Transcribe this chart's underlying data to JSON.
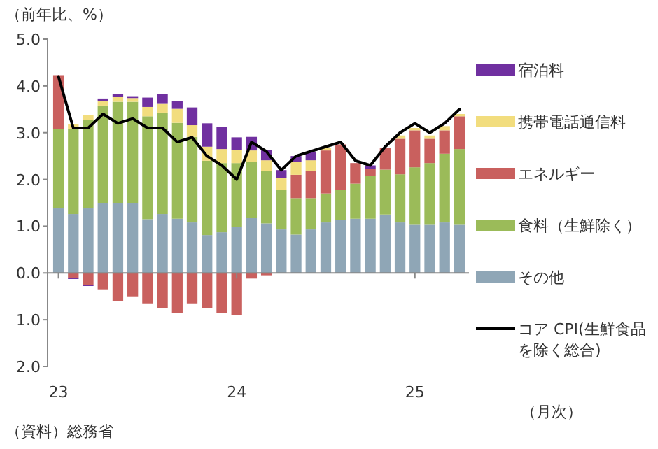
{
  "chart_data": {
    "type": "bar",
    "stacked": true,
    "ylabel": "（前年比、%）",
    "xlabel": "（月次）",
    "annotations": [
      "（資料）総務省"
    ],
    "categories": [
      "23",
      null,
      null,
      null,
      null,
      null,
      null,
      null,
      null,
      null,
      null,
      null,
      "24",
      null,
      null,
      null,
      null,
      null,
      null,
      null,
      null,
      null,
      null,
      null,
      "25",
      null,
      null,
      null
    ],
    "ylim": [
      -2,
      5
    ],
    "yticks": [
      {
        "value": -2,
        "label": "2.0"
      },
      {
        "value": -1,
        "label": "1.0"
      },
      {
        "value": 0,
        "label": "0.0"
      },
      {
        "value": 1,
        "label": "1.0"
      },
      {
        "value": 2,
        "label": "2.0"
      },
      {
        "value": 3,
        "label": "3.0"
      },
      {
        "value": 4,
        "label": "4.0"
      },
      {
        "value": 5,
        "label": "5.0"
      }
    ],
    "legend": "right",
    "series": [
      {
        "name": "その他",
        "color": "#8fa6b6",
        "values": [
          1.38,
          1.26,
          1.38,
          1.5,
          1.5,
          1.5,
          1.15,
          1.26,
          1.16,
          1.08,
          0.81,
          0.87,
          0.98,
          1.18,
          1.06,
          0.93,
          0.82,
          0.93,
          1.08,
          1.13,
          1.16,
          1.16,
          1.25,
          1.08,
          1.03,
          1.03,
          1.08,
          1.03
        ]
      },
      {
        "name": "食料（生鮮除く）",
        "color": "#9bbb59",
        "values": [
          1.7,
          1.82,
          1.9,
          2.08,
          2.16,
          2.16,
          2.2,
          2.17,
          2.05,
          1.83,
          1.59,
          1.48,
          1.37,
          1.2,
          1.12,
          0.85,
          0.78,
          0.67,
          0.62,
          0.65,
          0.75,
          0.92,
          0.96,
          1.03,
          1.23,
          1.32,
          1.47,
          1.62
        ]
      },
      {
        "name": "エネルギー",
        "color": "#c9605e",
        "values": [
          1.15,
          -0.1,
          -0.25,
          -0.35,
          -0.6,
          -0.5,
          -0.65,
          -0.75,
          -0.85,
          -0.65,
          -0.75,
          -0.85,
          -0.9,
          -0.12,
          -0.05,
          null,
          0.5,
          0.58,
          0.92,
          0.97,
          0.44,
          0.15,
          0.46,
          0.76,
          0.79,
          0.52,
          0.5,
          0.7
        ]
      },
      {
        "name": "携帯電話通信料",
        "color": "#f2dd7e",
        "values": [
          null,
          0.1,
          0.1,
          0.1,
          0.1,
          0.08,
          0.2,
          0.2,
          0.3,
          0.25,
          0.3,
          0.3,
          0.28,
          0.24,
          0.23,
          0.25,
          0.28,
          0.23,
          0.05,
          null,
          null,
          null,
          null,
          0.07,
          0.05,
          0.07,
          0.09,
          0.05
        ]
      },
      {
        "name": "宿泊料",
        "color": "#7030a0",
        "values": [
          null,
          -0.03,
          -0.03,
          0.05,
          0.06,
          0.04,
          0.2,
          0.2,
          0.17,
          0.38,
          0.5,
          0.47,
          0.27,
          0.29,
          0.22,
          0.17,
          0.12,
          0.17,
          null,
          null,
          null,
          0.07,
          null,
          null,
          null,
          null,
          null,
          null
        ]
      },
      {
        "name": "コア CPI(生鮮食品を除く総合)",
        "type": "line",
        "color": "#000000",
        "values": [
          4.2,
          3.1,
          3.1,
          3.4,
          3.2,
          3.3,
          3.1,
          3.1,
          2.8,
          2.9,
          2.5,
          2.3,
          2.0,
          2.8,
          2.6,
          2.2,
          2.5,
          2.6,
          2.7,
          2.8,
          2.4,
          2.3,
          2.7,
          3.0,
          3.2,
          3.0,
          3.2,
          3.5
        ]
      }
    ]
  }
}
